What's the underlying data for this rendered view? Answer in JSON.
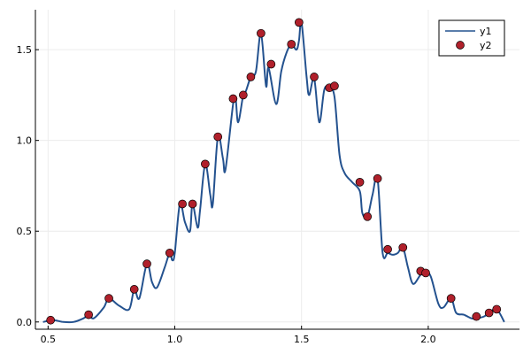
{
  "chart_data": {
    "type": "line",
    "title": "",
    "xlabel": "",
    "ylabel": "",
    "xlim": [
      0.45,
      2.36
    ],
    "ylim": [
      -0.04,
      1.72
    ],
    "xticks": [
      0.5,
      1.0,
      1.5,
      2.0
    ],
    "xtick_labels": [
      "0.5",
      "1.0",
      "1.5",
      "2.0"
    ],
    "yticks": [
      0.0,
      0.5,
      1.0,
      1.5
    ],
    "ytick_labels": [
      "0.0",
      "0.5",
      "1.0",
      "1.5"
    ],
    "grid": true,
    "legend_position": "top-right",
    "colors": {
      "line": "#24528f",
      "points": "#b0202b",
      "grid": "#ececec",
      "axis": "#000000"
    },
    "series": [
      {
        "name": "y1",
        "kind": "line",
        "x": [
          0.48,
          0.52,
          0.56,
          0.6,
          0.64,
          0.66,
          0.68,
          0.72,
          0.74,
          0.78,
          0.82,
          0.84,
          0.86,
          0.89,
          0.91,
          0.93,
          0.96,
          0.98,
          0.99,
          1.0,
          1.02,
          1.04,
          1.06,
          1.07,
          1.09,
          1.1,
          1.12,
          1.14,
          1.15,
          1.17,
          1.19,
          1.2,
          1.23,
          1.24,
          1.25,
          1.27,
          1.28,
          1.3,
          1.32,
          1.34,
          1.36,
          1.37,
          1.4,
          1.42,
          1.44,
          1.46,
          1.48,
          1.49,
          1.5,
          1.52,
          1.53,
          1.55,
          1.57,
          1.59,
          1.61,
          1.63,
          1.65,
          1.67,
          1.7,
          1.73,
          1.74,
          1.76,
          1.78,
          1.8,
          1.82,
          1.84,
          1.86,
          1.88,
          1.9,
          1.92,
          1.94,
          1.97,
          1.99,
          2.01,
          2.04,
          2.06,
          2.09,
          2.11,
          2.14,
          2.17,
          2.19,
          2.22,
          2.24,
          2.27,
          2.3
        ],
        "y": [
          0.0,
          0.01,
          0.0,
          0.0,
          0.02,
          0.04,
          0.02,
          0.08,
          0.13,
          0.09,
          0.07,
          0.18,
          0.13,
          0.32,
          0.22,
          0.19,
          0.3,
          0.38,
          0.34,
          0.38,
          0.65,
          0.55,
          0.5,
          0.65,
          0.52,
          0.62,
          0.87,
          0.7,
          0.65,
          1.02,
          0.9,
          0.84,
          1.2,
          1.23,
          1.1,
          1.25,
          1.27,
          1.35,
          1.38,
          1.59,
          1.3,
          1.4,
          1.2,
          1.38,
          1.48,
          1.53,
          1.5,
          1.55,
          1.65,
          1.35,
          1.25,
          1.34,
          1.1,
          1.28,
          1.29,
          1.24,
          0.92,
          0.82,
          0.77,
          0.72,
          0.6,
          0.58,
          0.7,
          0.79,
          0.38,
          0.38,
          0.37,
          0.38,
          0.41,
          0.3,
          0.21,
          0.26,
          0.27,
          0.25,
          0.1,
          0.08,
          0.13,
          0.05,
          0.04,
          0.02,
          0.02,
          0.03,
          0.05,
          0.07,
          0.0
        ]
      },
      {
        "name": "y2",
        "kind": "scatter",
        "x": [
          0.51,
          0.66,
          0.74,
          0.84,
          0.89,
          0.98,
          1.03,
          1.07,
          1.12,
          1.17,
          1.23,
          1.27,
          1.3,
          1.34,
          1.38,
          1.46,
          1.49,
          1.55,
          1.61,
          1.63,
          1.73,
          1.76,
          1.8,
          1.84,
          1.9,
          1.97,
          1.99,
          2.09,
          2.19,
          2.24,
          2.27
        ],
        "y": [
          0.01,
          0.04,
          0.13,
          0.18,
          0.32,
          0.38,
          0.65,
          0.65,
          0.87,
          1.02,
          1.23,
          1.25,
          1.35,
          1.59,
          1.42,
          1.53,
          1.65,
          1.35,
          1.29,
          1.3,
          0.77,
          0.58,
          0.79,
          0.4,
          0.41,
          0.28,
          0.27,
          0.13,
          0.03,
          0.05,
          0.07
        ]
      }
    ]
  }
}
